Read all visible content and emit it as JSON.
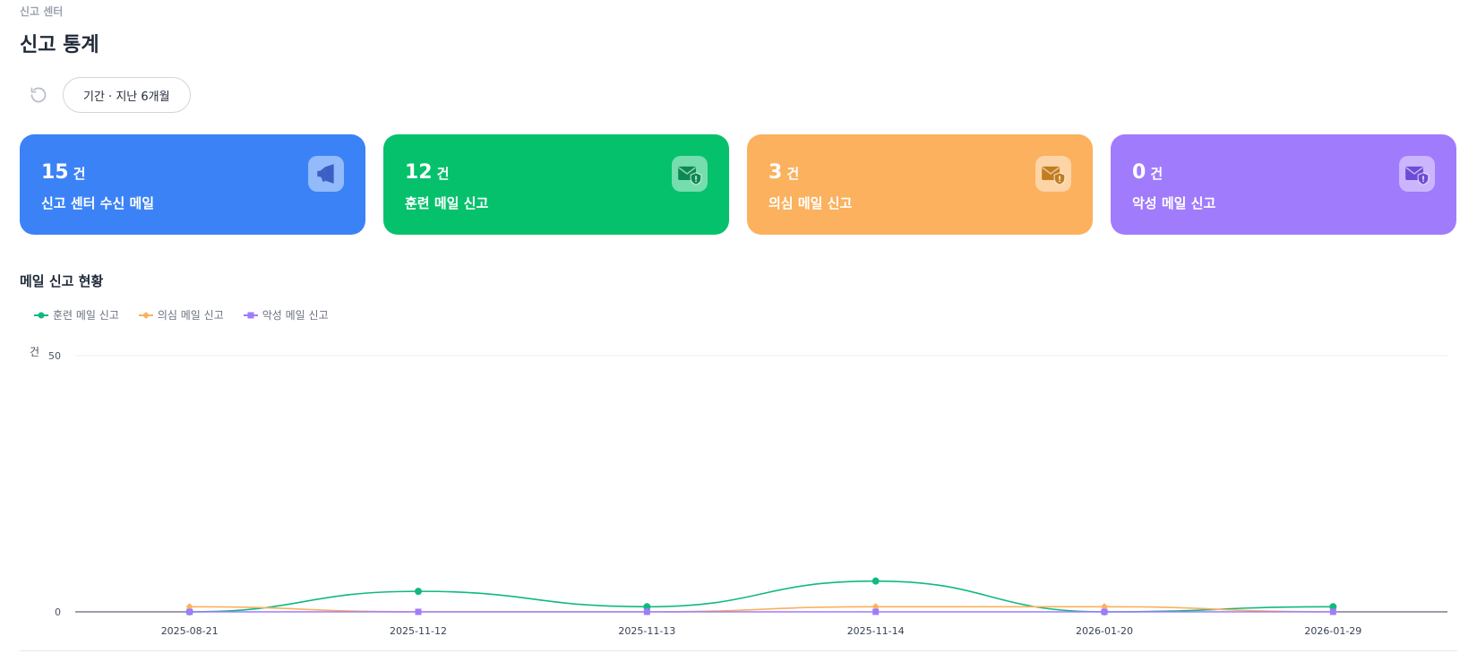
{
  "breadcrumb": "신고 센터",
  "page_title": "신고 통계",
  "toolbar": {
    "period_label": "기간 · 지난 6개월"
  },
  "cards": [
    {
      "count": "15",
      "unit": "건",
      "label": "신고 센터 수신 메일",
      "color": "#3b82f6",
      "icon": "megaphone-icon",
      "icon_color": "#3b5fc4"
    },
    {
      "count": "12",
      "unit": "건",
      "label": "훈련 메일 신고",
      "color": "#06c16c",
      "icon": "mail-shield-icon",
      "icon_color": "#0a8a52"
    },
    {
      "count": "3",
      "unit": "건",
      "label": "의심 메일 신고",
      "color": "#fbb15d",
      "icon": "mail-shield-icon",
      "icon_color": "#c27d1f"
    },
    {
      "count": "0",
      "unit": "건",
      "label": "악성 메일 신고",
      "color": "#a07bfb",
      "icon": "mail-shield-icon",
      "icon_color": "#6d4bd6"
    }
  ],
  "section_title": "메일 신고 현황",
  "chart_data": {
    "type": "line",
    "ylabel": "건",
    "ylim": [
      0,
      50
    ],
    "yticks": [
      "0",
      "50"
    ],
    "categories": [
      "2025-08-21",
      "2025-11-12",
      "2025-11-13",
      "2025-11-14",
      "2026-01-20",
      "2026-01-29"
    ],
    "series": [
      {
        "name": "훈련 메일 신고",
        "color": "#10b981",
        "marker": "circle",
        "values": [
          0,
          4,
          1,
          6,
          0,
          1
        ]
      },
      {
        "name": "의심 메일 신고",
        "color": "#fbb15d",
        "marker": "diamond",
        "values": [
          1,
          0,
          0,
          1,
          1,
          0
        ]
      },
      {
        "name": "악성 메일 신고",
        "color": "#a07bfb",
        "marker": "square",
        "values": [
          0,
          0,
          0,
          0,
          0,
          0
        ]
      }
    ],
    "legend_position": "top-left",
    "grid": true
  }
}
